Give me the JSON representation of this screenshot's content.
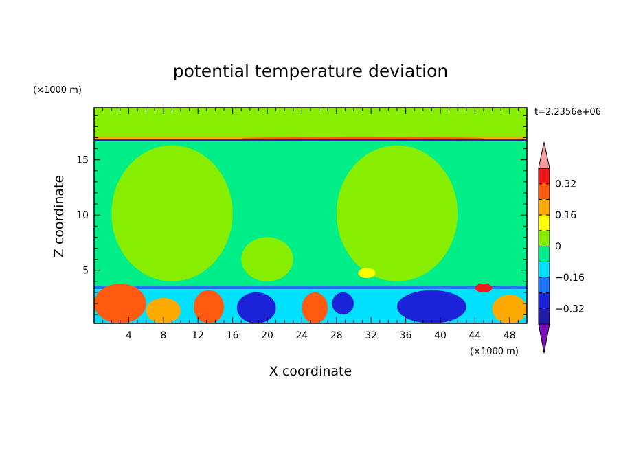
{
  "chart_data": {
    "type": "heatmap",
    "title": "potential temperature deviation",
    "xlabel": "X coordinate",
    "ylabel": "Z coordinate",
    "x_unit": "(×1000 m)",
    "y_unit": "(×1000 m)",
    "time_label": "t=2.2356e+06",
    "xlim": [
      0,
      50
    ],
    "ylim": [
      0.2,
      19.7
    ],
    "x_ticks": [
      "4",
      "8",
      "12",
      "16",
      "20",
      "24",
      "28",
      "32",
      "36",
      "40",
      "44",
      "48"
    ],
    "y_ticks": [
      "5",
      "10",
      "15"
    ],
    "colorbar": {
      "ticks": [
        "0.32",
        "0.16",
        "0",
        "−0.16",
        "−0.32"
      ],
      "levels": [
        -0.4,
        -0.32,
        -0.24,
        -0.16,
        -0.08,
        0,
        0.08,
        0.16,
        0.24,
        0.32,
        0.4
      ],
      "colors": [
        "#7b10b8",
        "#1f1aa6",
        "#1c22d8",
        "#1e78ff",
        "#00e0ff",
        "#00ee88",
        "#88ee00",
        "#ffff00",
        "#ffaa00",
        "#ff5a10",
        "#ee1a1a",
        "#f8a0a0"
      ]
    },
    "bands": [
      {
        "z_from": 17.0,
        "z_to": 19.7,
        "value": 0.04
      },
      {
        "z_from": 16.65,
        "z_to": 16.85,
        "value": -0.28
      },
      {
        "z_from": 16.85,
        "z_to": 17.1,
        "value": 0.2
      },
      {
        "z_from": 3.6,
        "z_to": 16.65,
        "value": -0.02
      },
      {
        "z_from": 3.3,
        "z_to": 3.6,
        "value": -0.2
      },
      {
        "z_from": 0.2,
        "z_to": 3.3,
        "value": -0.1
      }
    ],
    "patches": [
      {
        "x": [
          0,
          6
        ],
        "z": [
          0.2,
          3.8
        ],
        "value": 0.3
      },
      {
        "x": [
          6,
          10
        ],
        "z": [
          0.2,
          2.5
        ],
        "value": 0.22
      },
      {
        "x": [
          11.5,
          15
        ],
        "z": [
          0.2,
          3.2
        ],
        "value": 0.28
      },
      {
        "x": [
          16.5,
          21
        ],
        "z": [
          0.2,
          3.0
        ],
        "value": -0.3
      },
      {
        "x": [
          24,
          27
        ],
        "z": [
          0.2,
          3.0
        ],
        "value": 0.3
      },
      {
        "x": [
          27.5,
          30
        ],
        "z": [
          1.0,
          3.0
        ],
        "value": -0.25
      },
      {
        "x": [
          35,
          43
        ],
        "z": [
          0.2,
          3.2
        ],
        "value": -0.3
      },
      {
        "x": [
          44,
          46
        ],
        "z": [
          3.0,
          3.8
        ],
        "value": 0.35
      },
      {
        "x": [
          46,
          50
        ],
        "z": [
          0.2,
          2.8
        ],
        "value": 0.2
      },
      {
        "x": [
          17,
          45
        ],
        "z": [
          16.85,
          17.05
        ],
        "value": 0.3
      },
      {
        "x": [
          2,
          16
        ],
        "z": [
          4,
          16.3
        ],
        "value": 0.04
      },
      {
        "x": [
          17,
          23
        ],
        "z": [
          4,
          8
        ],
        "value": 0.04
      },
      {
        "x": [
          28,
          42
        ],
        "z": [
          4,
          16.3
        ],
        "value": 0.04
      },
      {
        "x": [
          30.5,
          32.5
        ],
        "z": [
          4.3,
          5.2
        ],
        "value": 0.14
      }
    ]
  }
}
